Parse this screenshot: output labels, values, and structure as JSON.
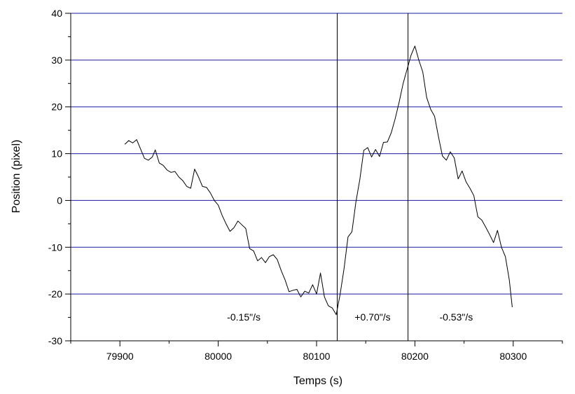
{
  "chart_data": {
    "type": "line",
    "title": "",
    "xlabel": "Temps (s)",
    "ylabel": "Position (pixel)",
    "xlim": [
      79850,
      80350
    ],
    "ylim": [
      -30,
      40
    ],
    "x_ticks": [
      79900,
      80000,
      80100,
      80200,
      80300
    ],
    "y_ticks": [
      -30,
      -20,
      -10,
      0,
      10,
      20,
      30,
      40
    ],
    "grid": "horizontal",
    "colors": {
      "grid": "#1a1aa6",
      "line": "#000000",
      "axes": "#000000"
    },
    "vertical_markers": [
      80121,
      80193
    ],
    "annotations": [
      {
        "text": "-0.15\"/s",
        "x": 80026,
        "y": -24.9
      },
      {
        "text": "+0.70\"/s",
        "x": 80157,
        "y": -24.9
      },
      {
        "text": "-0.53\"/s",
        "x": 80242,
        "y": -24.9
      }
    ],
    "series": [
      {
        "x": [
          79905,
          79909,
          79913,
          79917,
          79921,
          79925,
          79929,
          79933,
          79936,
          79940,
          79944,
          79948,
          79952,
          79956,
          79960,
          79964,
          79968,
          79972,
          79976,
          79980,
          79984,
          79988,
          79992,
          79996,
          80000,
          80004,
          80008,
          80012,
          80016,
          80020,
          80024,
          80028,
          80032,
          80036,
          80040,
          80044,
          80048,
          80052,
          80056,
          80060,
          80064,
          80068,
          80072,
          80076,
          80080,
          80084,
          80088,
          80092,
          80096,
          80100,
          80104,
          80108,
          80112,
          80116,
          80120,
          80124,
          80128,
          80132,
          80136,
          80140,
          80144,
          80148,
          80152,
          80156,
          80160,
          80164,
          80168,
          80172,
          80176,
          80180,
          80184,
          80188,
          80192,
          80196,
          80200,
          80204,
          80208,
          80212,
          80216,
          80220,
          80224,
          80228,
          80232,
          80236,
          80240,
          80244,
          80248,
          80252,
          80256,
          80260,
          80264,
          80268,
          80272,
          80276,
          80280,
          80284,
          80288,
          80292,
          80296,
          80299
        ],
        "y": [
          12,
          12.8,
          12.3,
          13,
          11,
          9,
          8.6,
          9.3,
          10.8,
          8,
          7.5,
          6.5,
          6,
          6.2,
          5,
          4.2,
          3,
          2.6,
          6.7,
          5,
          3,
          2.8,
          1.6,
          0,
          -1,
          -3.2,
          -5,
          -6.6,
          -5.8,
          -4.4,
          -5.2,
          -6,
          -10.3,
          -10.8,
          -12.9,
          -12.2,
          -13.3,
          -12,
          -11.6,
          -12.6,
          -15,
          -17,
          -19.5,
          -19.2,
          -19,
          -20.6,
          -19.4,
          -19.8,
          -18,
          -20,
          -15.5,
          -20.6,
          -22.5,
          -23,
          -24.4,
          -20,
          -14.5,
          -7.8,
          -6.7,
          -0.3,
          4.5,
          10.7,
          11.3,
          9.3,
          10.9,
          9.4,
          12.4,
          12.5,
          14.5,
          17.5,
          21,
          25,
          28,
          31,
          33,
          30,
          27.5,
          22,
          19.5,
          18,
          13.6,
          9.5,
          8.6,
          10.4,
          9.1,
          4.6,
          6.3,
          4,
          2.6,
          1,
          -3.5,
          -4.2,
          -5.7,
          -7.3,
          -9,
          -6.4,
          -10,
          -12,
          -17,
          -22.8
        ]
      }
    ]
  }
}
